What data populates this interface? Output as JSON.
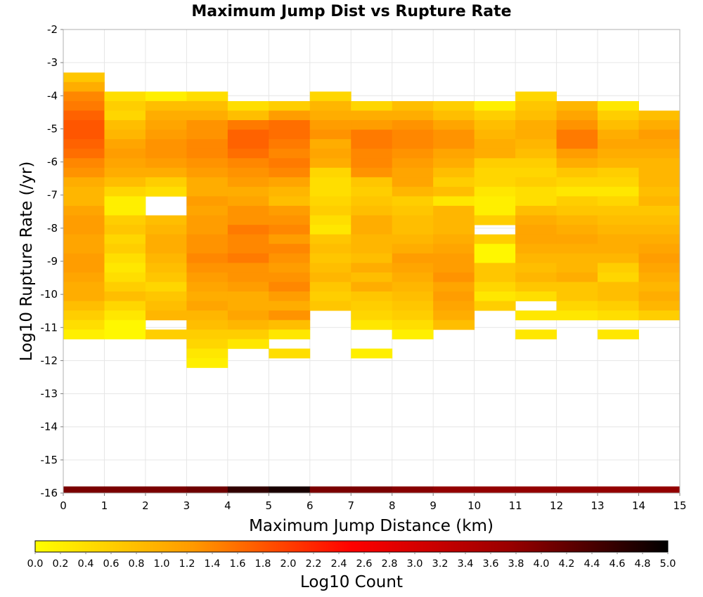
{
  "chart_data": {
    "type": "heatmap",
    "title": "Maximum Jump Dist vs Rupture Rate",
    "xlabel": "Maximum Jump Distance (km)",
    "ylabel": "Log10 Rupture Rate (/yr)",
    "xlim": [
      0,
      15
    ],
    "ylim": [
      -16,
      -2
    ],
    "x_ticks": [
      "0",
      "1",
      "2",
      "3",
      "4",
      "5",
      "6",
      "7",
      "8",
      "9",
      "10",
      "11",
      "12",
      "13",
      "14",
      "15"
    ],
    "y_ticks": [
      "-2",
      "-3",
      "-4",
      "-5",
      "-6",
      "-7",
      "-8",
      "-9",
      "-10",
      "-11",
      "-12",
      "-13",
      "-14",
      "-15",
      "-16"
    ],
    "grid": true,
    "colorbar": {
      "label": "Log10 Count",
      "range": [
        0,
        5
      ],
      "ticks": [
        "0.0",
        "0.2",
        "0.4",
        "0.6",
        "0.8",
        "1.0",
        "1.2",
        "1.4",
        "1.6",
        "1.8",
        "2.0",
        "2.2",
        "2.4",
        "2.6",
        "2.8",
        "3.0",
        "3.2",
        "3.4",
        "3.6",
        "3.8",
        "4.0",
        "4.2",
        "4.4",
        "4.6",
        "4.8",
        "5.0"
      ],
      "colors": [
        "#ffff00",
        "#ff9900",
        "#ff0000",
        "#990000",
        "#000000"
      ]
    },
    "y_bin_start": -3.3,
    "y_bin_width": 0.2875,
    "bottom_row": {
      "y": -15.9,
      "values": [
        4.0,
        4.0,
        4.0,
        4.1,
        4.6,
        4.8,
        4.0,
        4.0,
        3.9,
        3.8,
        3.8,
        3.8,
        3.8,
        3.8,
        3.8
      ]
    },
    "columns": [
      {
        "x": 0.5,
        "values": [
          0.7,
          1.0,
          1.4,
          1.5,
          1.7,
          1.8,
          1.8,
          1.7,
          1.6,
          1.4,
          1.3,
          1.0,
          0.9,
          0.9,
          1.1,
          1.2,
          1.2,
          1.1,
          1.1,
          1.2,
          1.2,
          1.1,
          1.0,
          1.0,
          0.8,
          0.6,
          0.4,
          0.2
        ]
      },
      {
        "x": 1.5,
        "skip": 2,
        "values": [
          0.4,
          0.6,
          0.5,
          0.8,
          0.9,
          1.1,
          1.2,
          1.1,
          1.0,
          0.8,
          0.5,
          0.2,
          0.2,
          0.6,
          0.7,
          0.5,
          0.6,
          0.4,
          0.3,
          0.4,
          0.6,
          0.8,
          0.5,
          0.3,
          0.1,
          0.1
        ]
      },
      {
        "x": 2.5,
        "skip": 2,
        "values": [
          0.2,
          0.8,
          1.0,
          1.1,
          1.2,
          1.3,
          1.3,
          1.2,
          1.0,
          0.6,
          0.4,
          null,
          null,
          0.8,
          0.9,
          1.0,
          1.0,
          0.9,
          0.8,
          0.7,
          0.5,
          0.7,
          0.8,
          0.9,
          null,
          0.6
        ]
      },
      {
        "x": 3.5,
        "skip": 2,
        "values": [
          0.4,
          0.8,
          1.0,
          1.3,
          1.3,
          1.4,
          1.4,
          1.3,
          1.2,
          1.0,
          1.0,
          1.2,
          1.1,
          1.2,
          1.2,
          1.3,
          1.3,
          1.4,
          1.3,
          1.2,
          1.1,
          1.0,
          1.1,
          0.9,
          0.8,
          0.6,
          0.5,
          0.3,
          0.2
        ]
      },
      {
        "x": 4.5,
        "skip": 3,
        "values": [
          0.4,
          0.8,
          1.5,
          1.7,
          1.7,
          1.6,
          1.4,
          1.3,
          1.2,
          1.0,
          1.1,
          1.3,
          1.3,
          1.5,
          1.4,
          1.4,
          1.5,
          1.3,
          1.3,
          1.2,
          1.0,
          1.0,
          1.1,
          0.9,
          0.6,
          0.3
        ]
      },
      {
        "x": 5.5,
        "skip": 3,
        "values": [
          0.6,
          1.2,
          1.6,
          1.6,
          1.5,
          1.4,
          1.5,
          1.4,
          1.1,
          0.9,
          0.8,
          1.2,
          1.3,
          1.4,
          1.2,
          1.4,
          1.3,
          1.2,
          1.3,
          1.4,
          1.2,
          1.0,
          1.3,
          0.8,
          0.3,
          null,
          0.4
        ]
      },
      {
        "x": 6.5,
        "skip": 2,
        "values": [
          0.5,
          0.9,
          1.0,
          1.2,
          1.3,
          1.0,
          1.1,
          1.0,
          0.5,
          0.4,
          0.4,
          0.5,
          0.6,
          0.4,
          0.3,
          0.7,
          0.8,
          0.7,
          0.8,
          0.9,
          0.7,
          0.6,
          0.7
        ]
      },
      {
        "x": 7.5,
        "skip": 3,
        "values": [
          0.5,
          1.0,
          1.2,
          1.5,
          1.5,
          1.4,
          1.4,
          1.3,
          0.7,
          0.6,
          0.7,
          0.8,
          1.0,
          1.0,
          0.9,
          0.9,
          0.8,
          1.0,
          0.8,
          1.0,
          0.7,
          0.6,
          0.5,
          0.3,
          null,
          null,
          0.2
        ]
      },
      {
        "x": 8.5,
        "skip": 3,
        "values": [
          0.8,
          1.0,
          1.3,
          1.4,
          1.4,
          1.3,
          1.2,
          1.1,
          1.1,
          0.9,
          0.6,
          0.7,
          0.8,
          0.8,
          0.9,
          1.0,
          1.2,
          1.1,
          1.0,
          0.9,
          0.8,
          0.7,
          0.6,
          0.4,
          0.2
        ]
      },
      {
        "x": 9.5,
        "skip": 3,
        "values": [
          0.6,
          0.8,
          1.1,
          1.3,
          1.3,
          1.1,
          1.0,
          0.8,
          0.6,
          0.8,
          0.3,
          0.9,
          0.9,
          0.9,
          1.0,
          1.1,
          1.2,
          1.2,
          1.3,
          1.1,
          1.2,
          1.1,
          1.0,
          0.8
        ]
      },
      {
        "x": 10.5,
        "skip": 3,
        "values": [
          0.2,
          0.6,
          0.8,
          0.9,
          1.0,
          1.0,
          0.6,
          0.5,
          0.5,
          0.3,
          0.2,
          0.2,
          0.6,
          null,
          0.6,
          0.1,
          0.1,
          0.7,
          0.7,
          0.5,
          0.3,
          0.6
        ]
      },
      {
        "x": 11.5,
        "skip": 2,
        "values": [
          0.5,
          0.7,
          0.8,
          1.0,
          1.0,
          0.9,
          0.8,
          0.6,
          0.5,
          0.6,
          0.4,
          0.4,
          0.8,
          1.0,
          1.1,
          1.1,
          1.0,
          0.9,
          0.8,
          0.9,
          0.7,
          0.4,
          null,
          0.3,
          null,
          0.3
        ]
      },
      {
        "x": 12.5,
        "skip": 3,
        "values": [
          0.9,
          1.1,
          1.3,
          1.5,
          1.5,
          1.2,
          1.0,
          0.7,
          0.5,
          0.3,
          0.6,
          0.7,
          0.9,
          1.0,
          1.1,
          1.0,
          0.9,
          0.9,
          1.0,
          0.7,
          0.7,
          0.5,
          0.3
        ]
      },
      {
        "x": 13.5,
        "skip": 3,
        "values": [
          0.3,
          0.6,
          0.8,
          1.0,
          1.1,
          1.0,
          0.9,
          0.6,
          0.5,
          0.3,
          0.5,
          0.7,
          0.8,
          0.9,
          1.0,
          1.0,
          0.9,
          0.6,
          0.5,
          0.8,
          0.8,
          0.6,
          0.4,
          null,
          0.3
        ]
      },
      {
        "x": 14.5,
        "skip": 4,
        "values": [
          0.8,
          1.0,
          1.2,
          1.1,
          1.0,
          0.9,
          0.9,
          0.9,
          0.8,
          0.9,
          0.7,
          0.8,
          0.9,
          1.0,
          1.1,
          1.2,
          1.1,
          1.0,
          0.9,
          1.0,
          0.9,
          0.6
        ]
      }
    ]
  }
}
